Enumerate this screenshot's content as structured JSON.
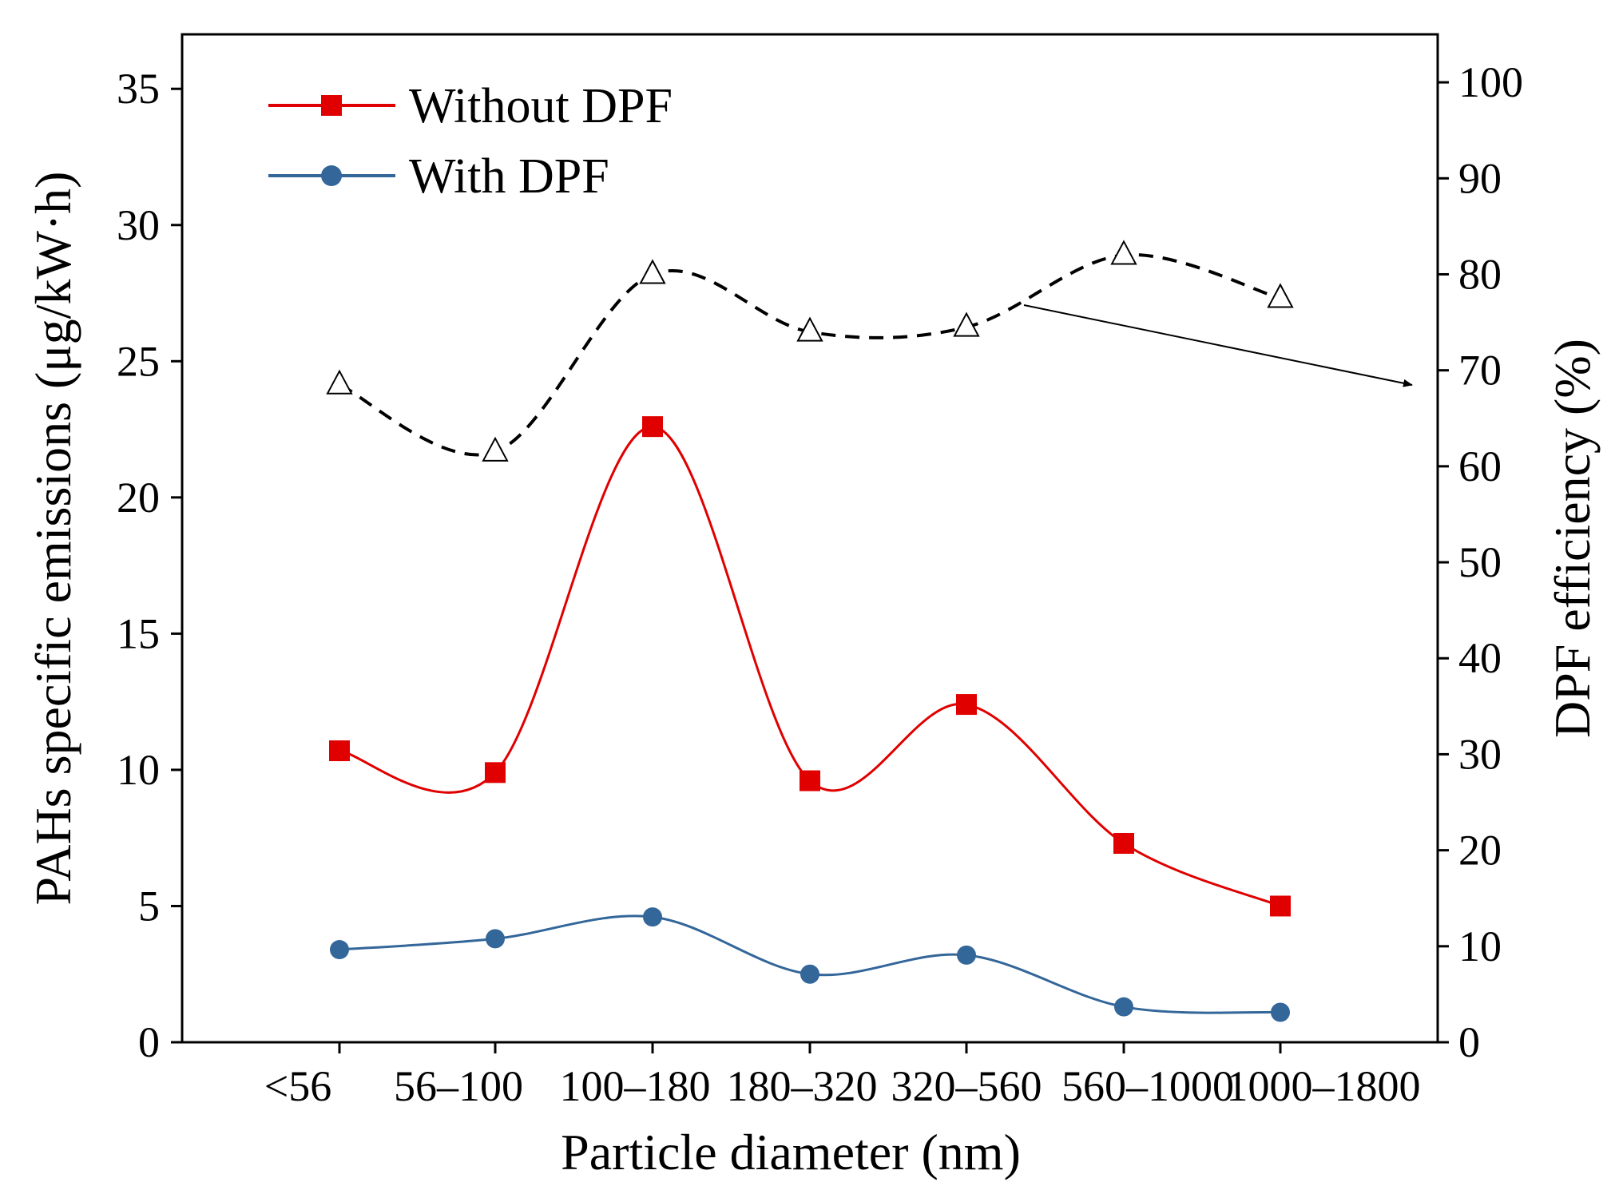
{
  "chart_data": {
    "type": "line",
    "categories": [
      "<56",
      "56–100",
      "100–180",
      "180–320",
      "320–560",
      "560–1000",
      "1000–1800"
    ],
    "xlabel": "Particle diameter (nm)",
    "ylabel": "PAHs specific emissions (μg/kW·h)",
    "ylabel_right": "DPF efficiency (%)",
    "ylim": [
      0,
      37
    ],
    "ylim_right": [
      0,
      105
    ],
    "yticks": [
      0,
      5,
      10,
      15,
      20,
      25,
      30,
      35
    ],
    "yticks_right": [
      0,
      10,
      20,
      30,
      40,
      50,
      60,
      70,
      80,
      90,
      100
    ],
    "legend_position": "top-left",
    "series": [
      {
        "name": "Without DPF",
        "axis": "left",
        "color": "#e00000",
        "marker": "square",
        "values": [
          10.7,
          9.9,
          22.6,
          9.6,
          12.4,
          7.3,
          5.0
        ]
      },
      {
        "name": "With DPF",
        "axis": "left",
        "color": "#336699",
        "marker": "circle",
        "values": [
          3.4,
          3.8,
          4.6,
          2.5,
          3.2,
          1.3,
          1.1
        ]
      },
      {
        "name": "DPF efficiency",
        "axis": "right",
        "color": "#000000",
        "marker": "open-triangle",
        "line_style": "dashed",
        "values": [
          68.5,
          61.5,
          80.0,
          74.0,
          74.5,
          82.0,
          77.5
        ]
      }
    ]
  }
}
